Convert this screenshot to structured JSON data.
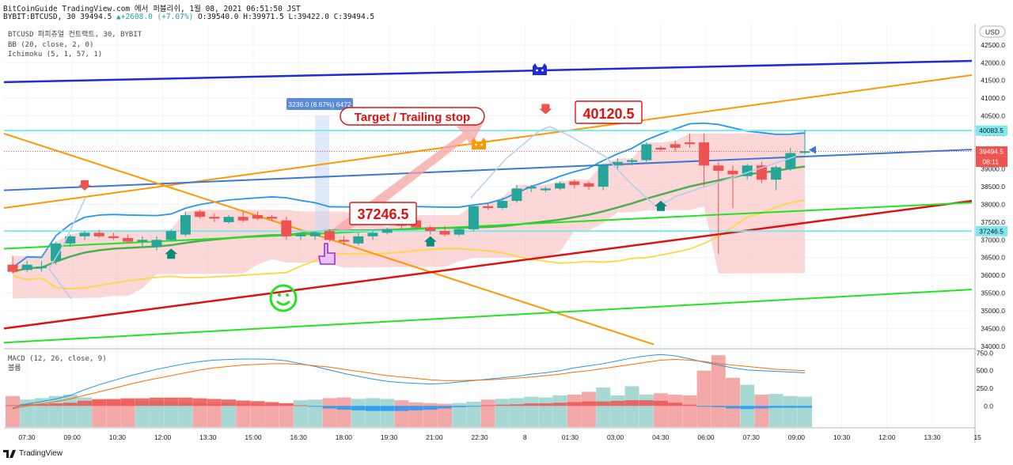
{
  "header": {
    "line1": "BitCoinGuide TradingView.com 에서 퍼블리쉬, 1월 08, 2021 06:51:50 JST",
    "symbol": "BYBIT:BTCUSD, 30",
    "last": "39494.5",
    "change": "▲+2608.0 (+7.07%)",
    "open": "O:39540.0",
    "high": "H:39971.5",
    "low": "L:39422.0",
    "close": "C:39494.5"
  },
  "legend": {
    "series": "BTCUSD 퍼피츄얼 컨트랙트, 30, BYBIT",
    "bb": "BB (20, close, 2, 0)",
    "ichimoku": "Ichimoku (5, 1, 57, 1)"
  },
  "macd_legend": {
    "title": "MACD (12, 26, close, 9)",
    "sub": "볼륨"
  },
  "annotations": {
    "target": "Target / Trailing stop",
    "label_high": "40120.5",
    "label_low": "37246.5",
    "measure": "3236.0 (8.67%) 6472"
  },
  "price_axis": {
    "currency": "USD",
    "last_label": "39494.5",
    "countdown": "08:11",
    "line_high_label": "40083.5",
    "line_low_label": "37246.5"
  },
  "footer": {
    "brand": "TradingView"
  },
  "colors": {
    "up": "#26a69a",
    "down": "#ef5350",
    "blue_trend": "#1e2bd6",
    "orange": "#ff9800",
    "red_trend": "#e0100f",
    "green_trend": "#22e322",
    "cyan_level": "#7ee8ee"
  },
  "chart_data": {
    "type": "candlestick",
    "price_ticks": [
      34000,
      34500,
      35000,
      35500,
      36000,
      36500,
      37000,
      37500,
      38000,
      38500,
      39000,
      39500,
      40000,
      40500,
      41000,
      41500,
      42000,
      42500
    ],
    "price_range": [
      33950,
      43100
    ],
    "macd_ticks": [
      0.0,
      250.0,
      500.0,
      750.0
    ],
    "macd_range": [
      -300,
      800
    ],
    "time_labels": [
      "07:30",
      "09:00",
      "10:30",
      "12:00",
      "13:30",
      "15:00",
      "16:30",
      "18:00",
      "19:30",
      "21:00",
      "22:30",
      "8",
      "01:30",
      "03:00",
      "04:30",
      "06:00",
      "07:30",
      "09:00",
      "10:30",
      "12:00",
      "13:30",
      "15"
    ],
    "candles": [
      [
        36300,
        36550,
        36050,
        36100
      ],
      [
        36150,
        36400,
        36100,
        36300
      ],
      [
        36200,
        36400,
        36100,
        36250
      ],
      [
        36400,
        36950,
        36300,
        36900
      ],
      [
        36900,
        37150,
        36800,
        37100
      ],
      [
        37100,
        37250,
        37000,
        37200
      ],
      [
        37200,
        37280,
        37050,
        37100
      ],
      [
        37100,
        37200,
        37000,
        37050
      ],
      [
        37050,
        37150,
        36900,
        36950
      ],
      [
        36950,
        37100,
        36800,
        37000
      ],
      [
        36800,
        37100,
        36700,
        37000
      ],
      [
        37000,
        37300,
        36950,
        37250
      ],
      [
        37150,
        37800,
        37100,
        37700
      ],
      [
        37800,
        37850,
        37600,
        37650
      ],
      [
        37650,
        37750,
        37500,
        37600
      ],
      [
        37500,
        37700,
        37450,
        37650
      ],
      [
        37650,
        37800,
        37500,
        37550
      ],
      [
        37700,
        37800,
        37550,
        37600
      ],
      [
        37650,
        37700,
        37550,
        37600
      ],
      [
        37550,
        37650,
        37000,
        37100
      ],
      [
        37100,
        37200,
        37000,
        37150
      ],
      [
        37100,
        37250,
        37000,
        37200
      ],
      [
        37250,
        37300,
        36950,
        37000
      ],
      [
        37000,
        37100,
        36850,
        36950
      ],
      [
        36900,
        37200,
        36850,
        37100
      ],
      [
        37100,
        37250,
        37000,
        37200
      ],
      [
        37200,
        37350,
        37150,
        37300
      ],
      [
        37650,
        37700,
        37300,
        37400
      ],
      [
        37550,
        37700,
        37300,
        37350
      ],
      [
        37350,
        37400,
        37150,
        37250
      ],
      [
        37250,
        37400,
        37100,
        37150
      ],
      [
        37150,
        37350,
        37100,
        37300
      ],
      [
        37300,
        38000,
        37250,
        37950
      ],
      [
        37950,
        38050,
        37850,
        37900
      ],
      [
        37900,
        38200,
        37850,
        38100
      ],
      [
        38100,
        38550,
        38050,
        38450
      ],
      [
        38450,
        38550,
        38350,
        38500
      ],
      [
        38400,
        38500,
        38350,
        38450
      ],
      [
        38450,
        38650,
        38400,
        38600
      ],
      [
        38650,
        38700,
        38450,
        38550
      ],
      [
        38600,
        38650,
        38400,
        38500
      ],
      [
        38500,
        39150,
        38400,
        39100
      ],
      [
        39100,
        39300,
        39000,
        39200
      ],
      [
        39200,
        39300,
        39100,
        39250
      ],
      [
        39250,
        39750,
        39200,
        39700
      ],
      [
        39600,
        39650,
        39500,
        39550
      ],
      [
        39700,
        39800,
        39500,
        39600
      ],
      [
        39750,
        40000,
        39600,
        39700
      ],
      [
        39750,
        40000,
        38500,
        39100
      ],
      [
        39100,
        39200,
        36600,
        38950
      ],
      [
        38950,
        39100,
        37900,
        38850
      ],
      [
        38800,
        39150,
        38700,
        39100
      ],
      [
        39100,
        39200,
        38600,
        38700
      ],
      [
        38700,
        39100,
        38400,
        39050
      ],
      [
        39000,
        39600,
        38950,
        39450
      ],
      [
        39500,
        40100,
        39400,
        39500
      ]
    ],
    "lines": [
      {
        "name": "blue_trend_upper",
        "from": [
          0,
          41450
        ],
        "to": [
          70,
          42050
        ]
      },
      {
        "name": "orange_upper",
        "from": [
          0,
          37900
        ],
        "to": [
          70,
          41650
        ]
      },
      {
        "name": "blue_mid",
        "from": [
          0,
          38400
        ],
        "to": [
          70,
          39550
        ]
      },
      {
        "name": "orange_down",
        "from": [
          0,
          40000
        ],
        "to": [
          47,
          34050
        ]
      },
      {
        "name": "red_trend",
        "from": [
          0,
          34500
        ],
        "to": [
          70,
          38100
        ]
      },
      {
        "name": "green_trend_mid",
        "from": [
          0,
          36750
        ],
        "to": [
          70,
          38050
        ]
      },
      {
        "name": "green_trend_low",
        "from": [
          0,
          34100
        ],
        "to": [
          70,
          35600
        ]
      }
    ],
    "levels": [
      40083.5,
      37246.5,
      39494.5
    ],
    "macd": {
      "macd_line": [
        -30,
        30,
        60,
        100,
        150,
        230,
        300,
        360,
        420,
        470,
        520,
        560,
        600,
        630,
        650,
        660,
        665,
        665,
        660,
        640,
        600,
        560,
        510,
        460,
        420,
        380,
        350,
        330,
        320,
        310,
        320,
        340,
        360,
        380,
        400,
        420,
        450,
        470,
        500,
        540,
        570,
        600,
        640,
        680,
        710,
        730,
        710,
        670,
        620,
        580,
        540,
        510,
        500,
        490,
        480,
        470
      ],
      "signal_line": [
        -40,
        0,
        30,
        60,
        100,
        150,
        200,
        250,
        300,
        350,
        390,
        430,
        470,
        510,
        540,
        560,
        580,
        590,
        600,
        600,
        590,
        570,
        550,
        520,
        490,
        460,
        430,
        410,
        390,
        370,
        360,
        360,
        365,
        370,
        380,
        395,
        410,
        430,
        450,
        480,
        500,
        530,
        560,
        590,
        620,
        650,
        660,
        650,
        630,
        600,
        580,
        560,
        540,
        520,
        510,
        500
      ],
      "volume": [
        140,
        90,
        110,
        140,
        160,
        120,
        100,
        80,
        90,
        70,
        80,
        60,
        50,
        40,
        30,
        40,
        30,
        20,
        20,
        40,
        80,
        90,
        110,
        120,
        100,
        110,
        100,
        80,
        50,
        40,
        30,
        40,
        60,
        90,
        100,
        110,
        130,
        120,
        150,
        160,
        200,
        260,
        150,
        280,
        160,
        180,
        160,
        150,
        500,
        720,
        400,
        300,
        160,
        170,
        140,
        130
      ]
    }
  }
}
